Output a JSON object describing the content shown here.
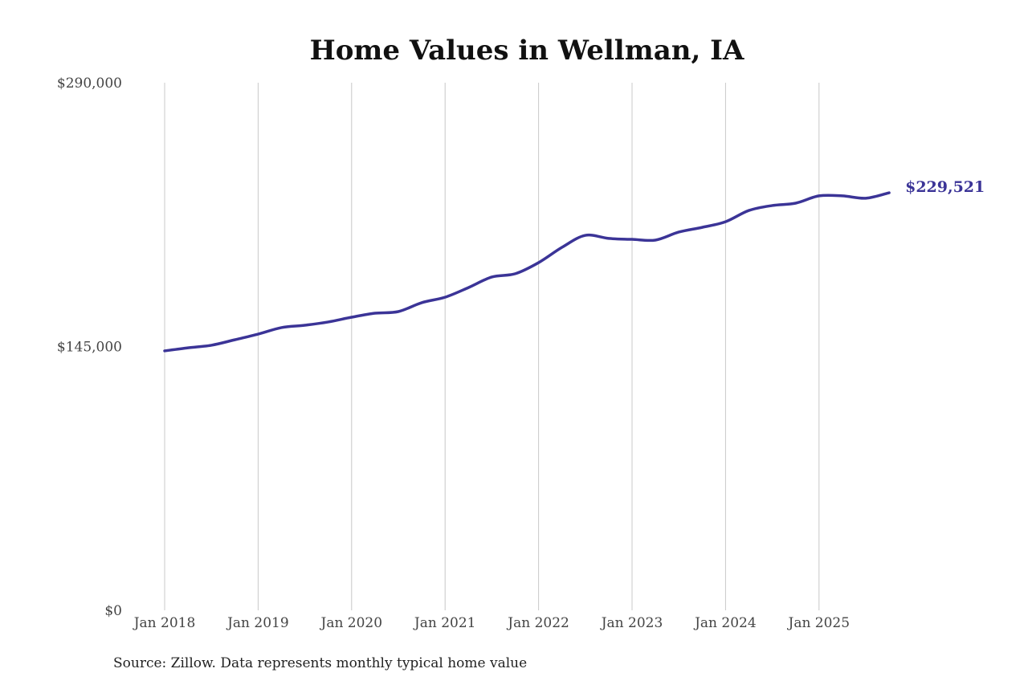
{
  "chart_data": {
    "type": "line",
    "title": "Home Values in Wellman, IA",
    "xlabel": "",
    "ylabel": "",
    "ylim": [
      0,
      290000
    ],
    "y_ticks": [
      0,
      145000,
      290000
    ],
    "y_tick_labels": [
      "$0",
      "$145,000",
      "$290,000"
    ],
    "x_range": [
      "2018-01",
      "2025-10"
    ],
    "x_ticks": [
      "2018-01",
      "2019-01",
      "2020-01",
      "2021-01",
      "2022-01",
      "2023-01",
      "2024-01",
      "2025-01"
    ],
    "x_tick_labels": [
      "Jan 2018",
      "Jan 2019",
      "Jan 2020",
      "Jan 2021",
      "Jan 2022",
      "Jan 2023",
      "Jan 2024",
      "Jan 2025"
    ],
    "grid": "vertical",
    "line_color": "#3b3497",
    "grid_color": "#c8c8c8",
    "end_label": "$229,521",
    "series": [
      {
        "x": [
          "2018-01",
          "2018-04",
          "2018-07",
          "2018-10",
          "2019-01",
          "2019-04",
          "2019-07",
          "2019-10",
          "2020-01",
          "2020-04",
          "2020-07",
          "2020-10",
          "2021-01",
          "2021-04",
          "2021-07",
          "2021-10",
          "2022-01",
          "2022-04",
          "2022-07",
          "2022-10",
          "2023-01",
          "2023-04",
          "2023-07",
          "2023-10",
          "2024-01",
          "2024-04",
          "2024-07",
          "2024-10",
          "2025-01",
          "2025-04",
          "2025-07",
          "2025-10"
        ],
        "values": [
          142600,
          144300,
          145700,
          148700,
          151800,
          155400,
          156700,
          158500,
          161100,
          163300,
          164200,
          169100,
          172100,
          177400,
          183200,
          185000,
          191100,
          199500,
          206100,
          204400,
          203900,
          203500,
          207900,
          210500,
          213600,
          219800,
          222500,
          223800,
          227800,
          227800,
          226500,
          229521
        ]
      }
    ]
  },
  "source": "Source: Zillow. Data represents monthly typical home value"
}
